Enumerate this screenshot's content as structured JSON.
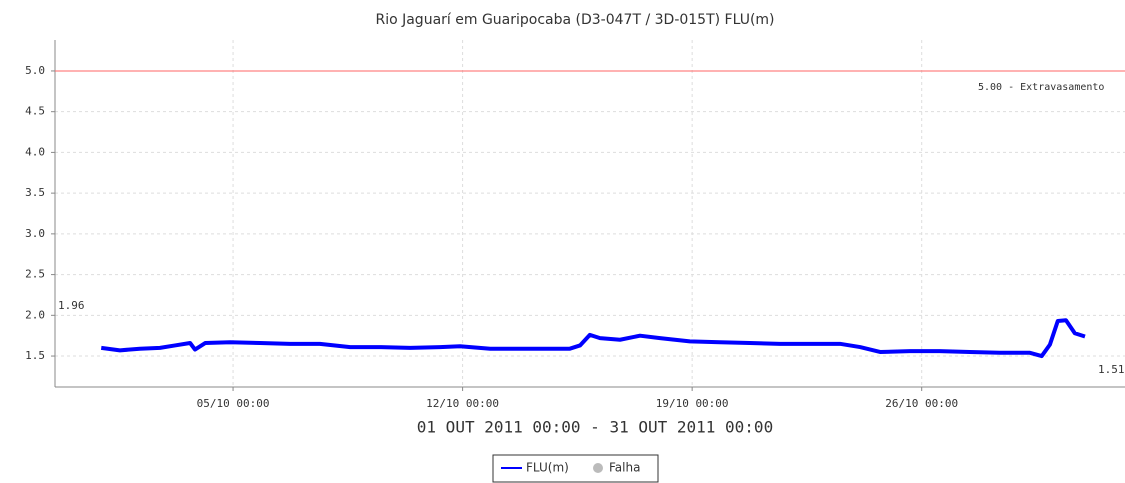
{
  "chart_data": {
    "type": "line",
    "title": "Rio Jaguarí em Guaripocaba (D3-047T / 3D-015T) FLU(m)",
    "subtitle": "01 OUT 2011 00:00 - 31 OUT 2011 00:00",
    "x": [
      0.98,
      1.55,
      2.16,
      2.77,
      3.23,
      3.69,
      3.84,
      4.15,
      4.91,
      5.82,
      6.74,
      7.65,
      8.57,
      9.48,
      10.4,
      11.31,
      11.92,
      12.84,
      13.75,
      14.66,
      15.27,
      15.58,
      15.88,
      16.19,
      16.8,
      17.41,
      18.02,
      18.93,
      19.85,
      20.76,
      21.68,
      22.59,
      23.51,
      24.12,
      24.73,
      25.64,
      26.55,
      27.47,
      28.38,
      29.3,
      29.66,
      29.91,
      30.15,
      30.4,
      30.67,
      30.98
    ],
    "series": [
      {
        "name": "FLU(m)",
        "color": "#0000ff",
        "values": [
          1.6,
          1.57,
          1.59,
          1.6,
          1.63,
          1.66,
          1.58,
          1.66,
          1.67,
          1.66,
          1.65,
          1.65,
          1.61,
          1.61,
          1.6,
          1.61,
          1.62,
          1.59,
          1.59,
          1.59,
          1.59,
          1.63,
          1.76,
          1.72,
          1.7,
          1.75,
          1.72,
          1.68,
          1.67,
          1.66,
          1.65,
          1.65,
          1.65,
          1.61,
          1.55,
          1.56,
          1.56,
          1.55,
          1.54,
          1.54,
          1.5,
          1.64,
          1.93,
          1.94,
          1.78,
          1.74
        ]
      }
    ],
    "legend_extra": {
      "name": "Falha",
      "color": "#bbbbbb"
    },
    "threshold": {
      "value": 5.0,
      "label": "5.00 - Extravasamento",
      "color": "#ff6666"
    },
    "max_label": "1.96",
    "min_label": "1.51",
    "xlim": [
      -0.43,
      32.2
    ],
    "xticks": [
      {
        "value": 5,
        "label": "05/10 00:00"
      },
      {
        "value": 12,
        "label": "12/10 00:00"
      },
      {
        "value": 19,
        "label": "19/10 00:00"
      },
      {
        "value": 26,
        "label": "26/10 00:00"
      }
    ],
    "ylim": [
      1.12,
      5.38
    ],
    "yticks": [
      1.5,
      {
        "value": 2,
        "label": "2.0"
      },
      2.5,
      {
        "value": 3,
        "label": "3.0"
      },
      3.5,
      {
        "value": 4,
        "label": "4.0"
      },
      4.5,
      {
        "value": 5,
        "label": "5.0"
      }
    ],
    "grid": true
  }
}
